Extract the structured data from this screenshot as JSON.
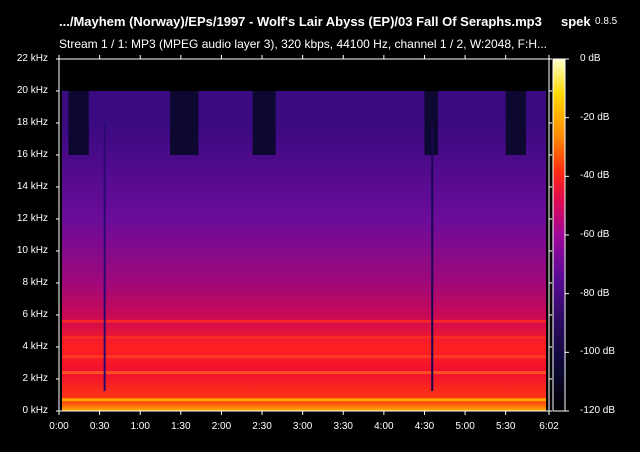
{
  "header": {
    "file_title": ".../Mayhem (Norway)/EPs/1997 - Wolf's Lair Abyss (EP)/03 Fall Of Seraphs.mp3",
    "app_name": "spek",
    "app_version": "0.8.5",
    "stream_info": "Stream 1 / 1: MP3 (MPEG audio layer 3), 320 kbps, 44100 Hz, channel 1 / 2, W:2048, F:H..."
  },
  "colors": {
    "background": "#000000",
    "text": "#ffffff",
    "palette": [
      "#000000",
      "#0b0833",
      "#2a0a5e",
      "#5a0a96",
      "#a0079a",
      "#e00a50",
      "#ff2a10",
      "#ff8a00",
      "#ffd800",
      "#ffffc8"
    ]
  },
  "chart_data": {
    "type": "heatmap",
    "title": "",
    "xlabel": "",
    "ylabel": "",
    "x_ticks": [
      "0:00",
      "0:30",
      "1:00",
      "1:30",
      "2:00",
      "2:30",
      "3:00",
      "3:30",
      "4:00",
      "4:30",
      "5:00",
      "5:30",
      "6:02"
    ],
    "x_tick_seconds": [
      0,
      30,
      60,
      90,
      120,
      150,
      180,
      210,
      240,
      270,
      300,
      330,
      362
    ],
    "xlim": [
      0,
      362
    ],
    "y_ticks": [
      "0 kHz",
      "2 kHz",
      "4 kHz",
      "6 kHz",
      "8 kHz",
      "10 kHz",
      "12 kHz",
      "14 kHz",
      "16 kHz",
      "18 kHz",
      "20 kHz",
      "22 kHz"
    ],
    "y_tick_khz": [
      0,
      2,
      4,
      6,
      8,
      10,
      12,
      14,
      16,
      18,
      20,
      22
    ],
    "ylim": [
      0,
      22
    ],
    "colorbar_ticks": [
      "0 dB",
      "-20 dB",
      "-40 dB",
      "-60 dB",
      "-80 dB",
      "-100 dB",
      "-120 dB"
    ],
    "colorbar_db": [
      0,
      -20,
      -40,
      -60,
      -80,
      -100,
      -120
    ],
    "colorbar_range": [
      -120,
      0
    ],
    "cutoff_khz_main": 20,
    "cutoff_khz_low_sections": 16
  }
}
